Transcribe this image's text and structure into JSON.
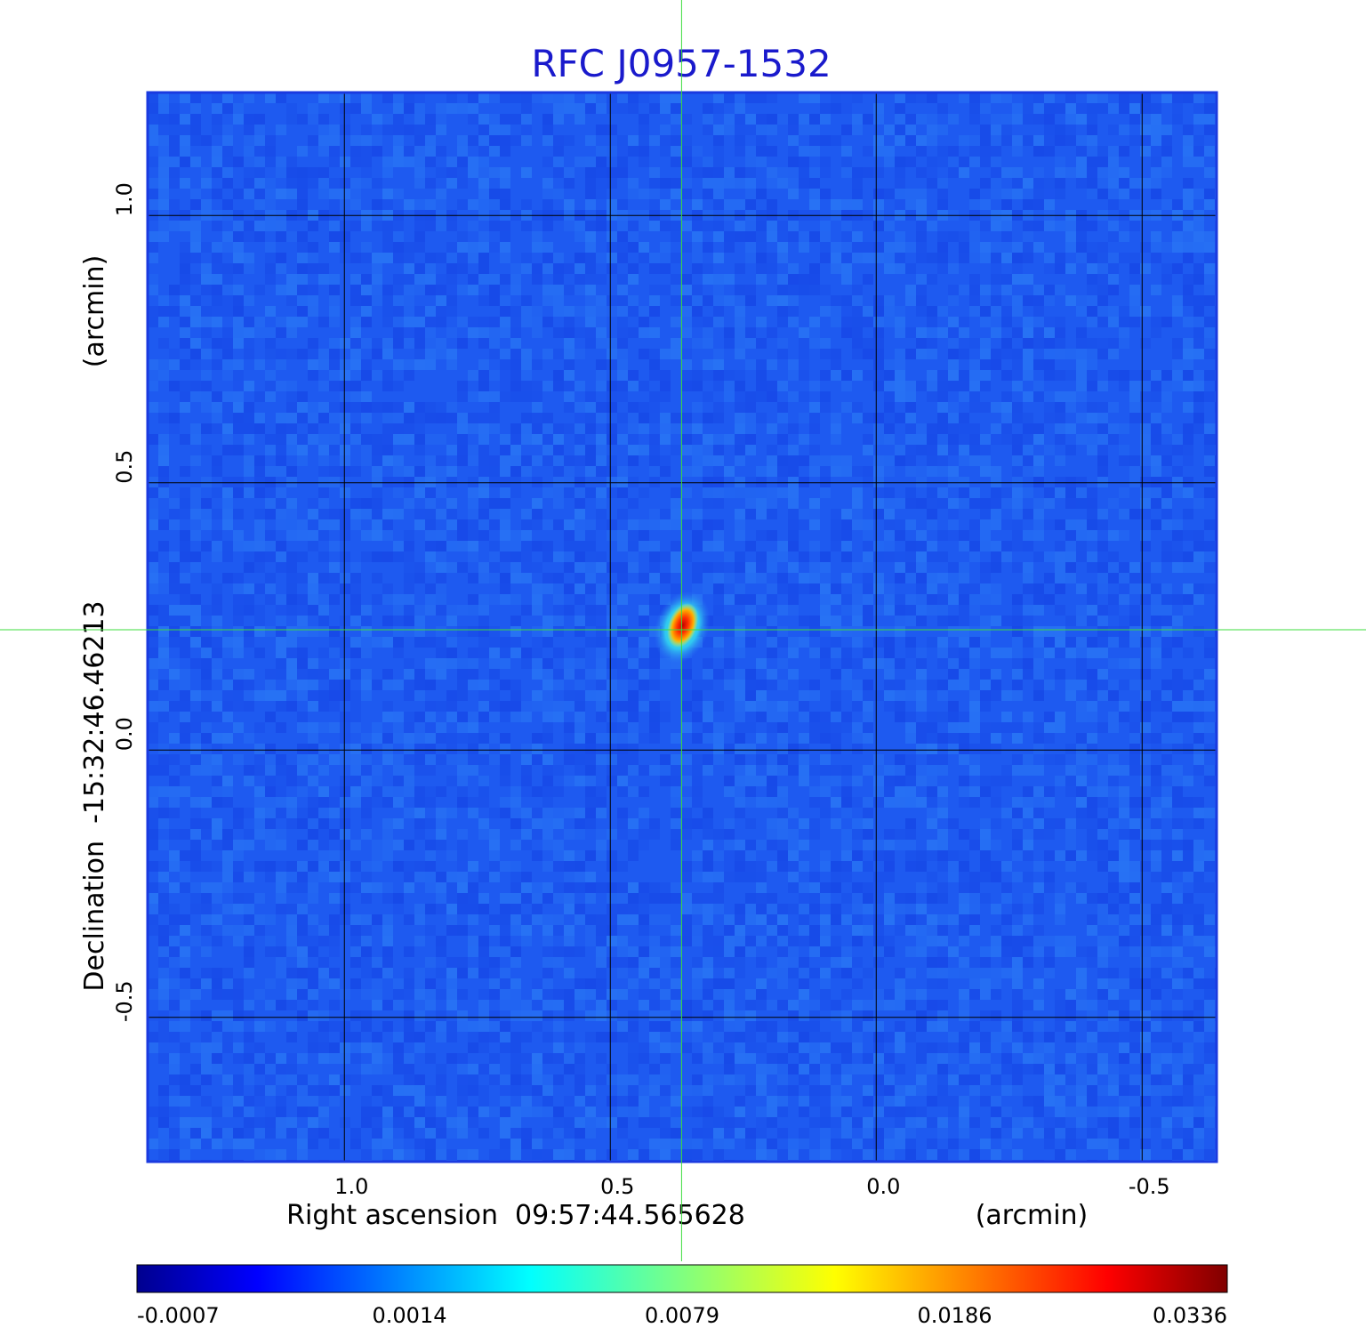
{
  "chart_data": {
    "type": "heatmap",
    "title": "RFC J0957-1532",
    "xlabel": "Right ascension  09:57:44.565628",
    "xunit": "(arcmin)",
    "ylabel": "Declination  -15:32:46.46213",
    "yunit": "(arcmin)",
    "xlim": [
      1.37,
      -0.64
    ],
    "ylim": [
      -0.77,
      1.23
    ],
    "x_ticks": [
      1.0,
      0.5,
      0.0,
      -0.5
    ],
    "x_tick_labels": [
      "1.0",
      "0.5",
      "0.0",
      "-0.5"
    ],
    "y_ticks": [
      1.0,
      0.5,
      0.0,
      -0.5
    ],
    "y_tick_labels": [
      "1.0",
      "0.5",
      "0.0",
      "-0.5"
    ],
    "grid": true,
    "crosshair": {
      "x": 0.366,
      "y": 0.225
    },
    "source": {
      "x": 0.365,
      "y": 0.23,
      "peak": 0.0336
    },
    "colormap": "jet",
    "colorbar_ticks": [
      "-0.0007",
      "0.0014",
      "0.0079",
      "0.0186",
      "0.0336"
    ],
    "colors": {
      "title": "#1a1acc",
      "background_noise": "#1e5af0",
      "grid": "#000000",
      "crosshair": "#3cdc3c",
      "frame": "#1a3ae0"
    }
  }
}
